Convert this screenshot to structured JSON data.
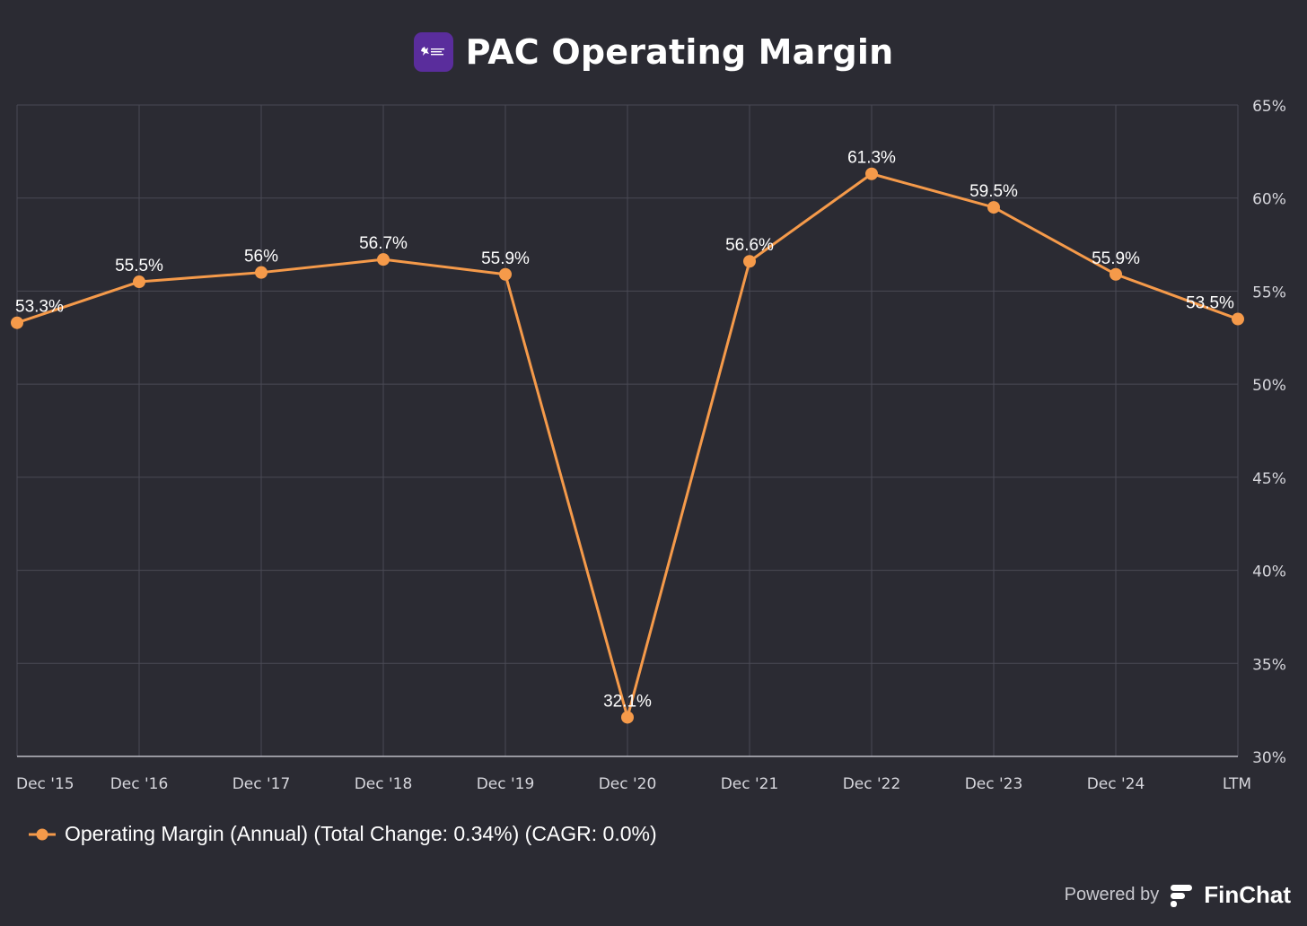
{
  "header": {
    "title": "PAC Operating Margin",
    "logo_icon": "airport-group-logo-icon",
    "logo_color": "#5a2d9c"
  },
  "chart_data": {
    "type": "line",
    "title": "PAC Operating Margin",
    "categories": [
      "Dec '15",
      "Dec '16",
      "Dec '17",
      "Dec '18",
      "Dec '19",
      "Dec '20",
      "Dec '21",
      "Dec '22",
      "Dec '23",
      "Dec '24",
      "LTM"
    ],
    "series": [
      {
        "name": "Operating Margin (Annual)",
        "values": [
          53.3,
          55.5,
          56.0,
          56.7,
          55.9,
          32.1,
          56.6,
          61.3,
          59.5,
          55.9,
          53.5
        ],
        "labels": [
          "53.3%",
          "55.5%",
          "56%",
          "56.7%",
          "55.9%",
          "32.1%",
          "56.6%",
          "61.3%",
          "59.5%",
          "55.9%",
          "53.5%"
        ],
        "color": "#f59a4a"
      }
    ],
    "ylim": [
      30,
      65
    ],
    "yticks": [
      30,
      35,
      40,
      45,
      50,
      55,
      60,
      65
    ],
    "ytick_labels": [
      "30%",
      "35%",
      "40%",
      "45%",
      "50%",
      "55%",
      "60%",
      "65%"
    ],
    "y_axis_side": "right",
    "grid": true,
    "xlabel": "",
    "ylabel": ""
  },
  "legend": {
    "label": "Operating Margin (Annual) (Total Change: 0.34%) (CAGR: 0.0%)",
    "placement": "bottom-left"
  },
  "footer": {
    "powered_by": "Powered by",
    "brand": "FinChat",
    "brand_icon": "finchat-logo-icon"
  },
  "colors": {
    "background": "#2b2b33",
    "grid": "#4a4a55",
    "axis": "#bdbdc5",
    "line": "#f59a4a",
    "text": "#ffffff",
    "tick_text": "#d6d6dc"
  }
}
